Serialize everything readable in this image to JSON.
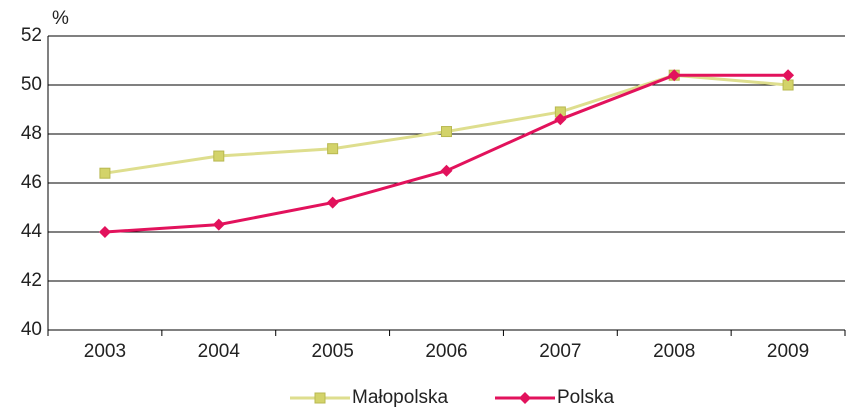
{
  "chart_data": {
    "type": "line",
    "ylabel": "%",
    "categories": [
      "2003",
      "2004",
      "2005",
      "2006",
      "2007",
      "2008",
      "2009"
    ],
    "series": [
      {
        "name": "Małopolska",
        "color": "#dede8e",
        "marker_color": "#d3d36a",
        "marker": "square",
        "values": [
          46.4,
          47.1,
          47.4,
          48.1,
          48.9,
          50.4,
          50.0
        ]
      },
      {
        "name": "Polska",
        "color": "#e2125c",
        "marker_color": "#e2125c",
        "marker": "diamond",
        "values": [
          44.0,
          44.3,
          45.2,
          46.5,
          48.6,
          50.4,
          50.4
        ]
      }
    ],
    "ylim": [
      40,
      52
    ],
    "yticks": [
      40,
      42,
      44,
      46,
      48,
      50,
      52
    ],
    "grid": true,
    "legend": "bottom"
  }
}
